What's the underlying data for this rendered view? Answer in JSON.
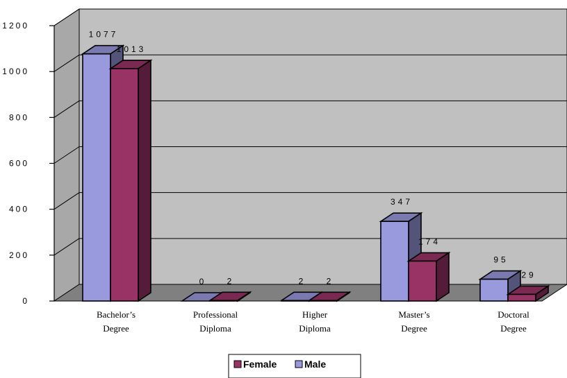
{
  "chart_data": {
    "type": "bar",
    "categories": [
      [
        "Bachelor’s",
        "Degree"
      ],
      [
        "Professional",
        "Diploma"
      ],
      [
        "Higher",
        "Diploma"
      ],
      [
        "Master’s",
        "Degree"
      ],
      [
        "Doctoral",
        "Degree"
      ]
    ],
    "series": [
      {
        "name": "Male",
        "values": [
          1077,
          0,
          2,
          347,
          95
        ],
        "color": "#9999dd"
      },
      {
        "name": "Female",
        "values": [
          1013,
          2,
          2,
          174,
          29
        ],
        "color": "#993366"
      }
    ],
    "data_labels": [
      [
        "1077",
        "0",
        "2",
        "347",
        "95"
      ],
      [
        "1013",
        "2",
        "2",
        "174",
        "29"
      ]
    ],
    "ylim": [
      0,
      1200
    ],
    "yticks": [
      0,
      200,
      400,
      600,
      800,
      1000,
      1200
    ],
    "ytick_labels": [
      "0",
      "200",
      "400",
      "600",
      "800",
      "1000",
      "1200"
    ],
    "grid": true,
    "legend_position": "bottom",
    "legend": [
      "Female",
      "Male"
    ],
    "wall_color": "#c0c0c0",
    "floor_color": "#808080",
    "title": "",
    "xlabel": "",
    "ylabel": ""
  }
}
